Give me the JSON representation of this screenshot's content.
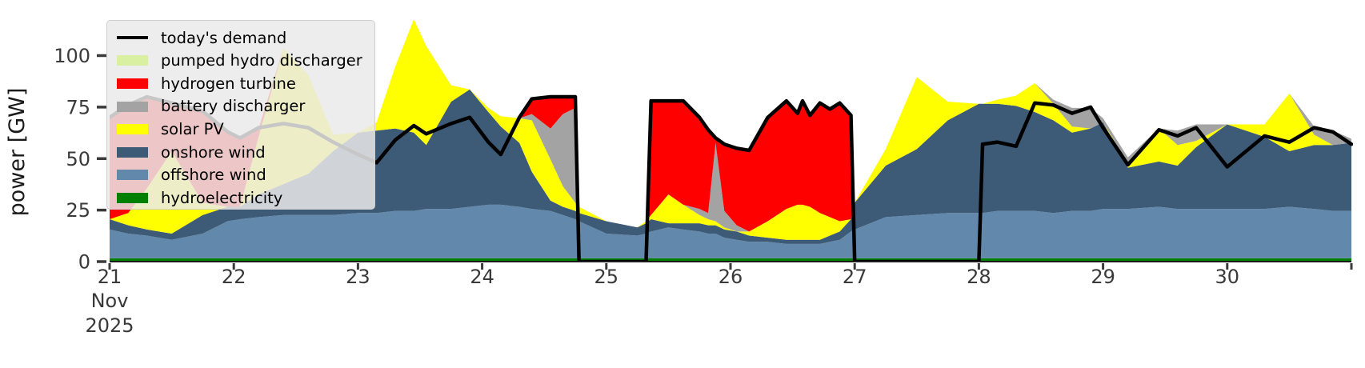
{
  "figure": {
    "ylabel": "power [GW]",
    "month_label": "Nov",
    "year_label": "2025",
    "axis_text_color": "#3a3a3a",
    "background_color": "#ffffff",
    "y_ticks": [
      0,
      25,
      50,
      75,
      100
    ],
    "x_ticks": [
      {
        "day": 21,
        "label": "21"
      },
      {
        "day": 22,
        "label": "22"
      },
      {
        "day": 23,
        "label": "23"
      },
      {
        "day": 24,
        "label": "24"
      },
      {
        "day": 25,
        "label": "25"
      },
      {
        "day": 26,
        "label": "26"
      },
      {
        "day": 27,
        "label": "27"
      },
      {
        "day": 28,
        "label": "28"
      },
      {
        "day": 29,
        "label": "29"
      },
      {
        "day": 30,
        "label": "30"
      }
    ],
    "edge_tick_day": 31
  },
  "legend": {
    "items": [
      {
        "label": "today's demand",
        "color": "#000000",
        "type": "line"
      },
      {
        "label": "pumped hydro discharger",
        "color": "#d9f0a3",
        "type": "patch"
      },
      {
        "label": "hydrogen turbine",
        "color": "#fe0000",
        "type": "patch"
      },
      {
        "label": "battery discharger",
        "color": "#a3a3a3",
        "type": "patch"
      },
      {
        "label": "solar PV",
        "color": "#ffff00",
        "type": "patch"
      },
      {
        "label": "onshore wind",
        "color": "#3d5a77",
        "type": "patch"
      },
      {
        "label": "offshore wind",
        "color": "#6288ac",
        "type": "patch"
      },
      {
        "label": "hydroelectricity",
        "color": "#008000",
        "type": "patch"
      }
    ]
  },
  "chart_data": {
    "type": "area",
    "stacked": true,
    "title": "",
    "xlabel": "",
    "ylabel": "power [GW]",
    "x_unit": "day of Nov 2025",
    "xlim": [
      21,
      31
    ],
    "ylim": [
      0,
      123
    ],
    "grid": false,
    "legend_position": "upper-left",
    "x": [
      21.0,
      21.15,
      21.3,
      21.5,
      21.75,
      21.95,
      22.05,
      22.2,
      22.4,
      22.6,
      22.8,
      23.0,
      23.15,
      23.3,
      23.45,
      23.55,
      23.75,
      23.9,
      24.05,
      24.15,
      24.3,
      24.4,
      24.55,
      24.65,
      24.75,
      24.78,
      25.0,
      25.25,
      25.32,
      25.36,
      25.5,
      25.62,
      25.75,
      25.82,
      25.88,
      25.95,
      26.05,
      26.15,
      26.3,
      26.45,
      26.54,
      26.58,
      26.64,
      26.72,
      26.8,
      26.88,
      26.97,
      27.0,
      27.25,
      27.5,
      27.75,
      28.0,
      28.03,
      28.15,
      28.3,
      28.45,
      28.6,
      28.75,
      28.9,
      29.0,
      29.2,
      29.45,
      29.6,
      29.75,
      30.0,
      30.3,
      30.5,
      30.7,
      30.85,
      31.0
    ],
    "series": [
      {
        "name": "hydroelectricity",
        "color": "#008000",
        "values": [
          1.6,
          1.6,
          1.6,
          1.6,
          1.6,
          1.6,
          1.6,
          1.6,
          1.6,
          1.6,
          1.6,
          1.6,
          1.6,
          1.6,
          1.6,
          1.6,
          1.6,
          1.6,
          1.6,
          1.6,
          1.6,
          1.6,
          1.6,
          1.6,
          1.6,
          1.6,
          1.6,
          1.6,
          1.6,
          1.6,
          1.6,
          1.6,
          1.6,
          1.6,
          1.6,
          1.6,
          1.6,
          1.6,
          1.6,
          1.6,
          1.6,
          1.6,
          1.6,
          1.6,
          1.6,
          1.6,
          1.6,
          1.6,
          1.6,
          1.6,
          1.6,
          1.6,
          1.6,
          1.6,
          1.6,
          1.6,
          1.6,
          1.6,
          1.6,
          1.6,
          1.6,
          1.6,
          1.6,
          1.6,
          1.6,
          1.6,
          1.6,
          1.6,
          1.6,
          1.6
        ]
      },
      {
        "name": "offshore wind",
        "color": "#6288ac",
        "values": [
          14,
          12,
          11,
          9,
          12,
          18,
          19,
          20,
          21,
          21,
          21,
          22,
          22,
          23,
          23,
          24,
          24,
          25,
          26,
          26,
          25,
          24,
          23,
          21,
          19,
          18,
          12,
          11,
          12,
          13,
          15,
          14,
          13,
          12,
          12,
          10,
          9,
          8,
          8,
          7,
          7,
          7,
          7,
          7,
          8,
          9,
          13,
          14,
          20,
          21,
          22,
          22,
          22,
          23,
          23,
          23,
          22,
          23,
          23,
          24,
          24,
          25,
          24,
          24,
          24,
          24,
          25,
          24,
          23,
          23
        ]
      },
      {
        "name": "onshore wind",
        "color": "#3d5a77",
        "values": [
          5,
          4,
          3,
          3,
          9,
          7,
          6,
          11,
          15,
          20,
          31,
          39,
          40,
          40,
          38,
          31,
          52,
          57,
          45,
          38,
          31,
          18,
          5,
          4,
          4,
          4,
          6,
          4,
          5,
          6,
          2,
          3,
          4,
          4,
          4,
          4,
          4,
          3,
          2,
          2,
          2,
          2,
          2,
          2,
          3,
          4,
          6,
          13,
          25,
          32,
          45,
          53,
          53,
          52,
          51,
          48,
          45,
          38,
          40,
          42,
          20,
          22,
          21,
          30,
          41,
          35,
          27,
          31,
          32,
          33
        ]
      },
      {
        "name": "solar PV",
        "color": "#ffff00",
        "values": [
          0,
          6,
          20,
          40,
          6,
          0,
          0,
          28,
          66,
          48,
          8,
          0,
          4,
          30,
          55,
          48,
          8,
          0,
          2,
          5,
          12,
          25,
          20,
          10,
          4,
          3,
          0,
          0,
          1,
          2,
          14,
          9,
          4,
          3,
          2,
          1,
          0,
          2,
          8,
          15,
          17,
          17,
          16,
          13,
          9,
          5,
          0,
          0,
          8,
          35,
          9,
          0,
          0,
          2,
          5,
          14,
          8,
          3,
          0,
          0,
          2,
          16,
          10,
          3,
          0,
          6,
          28,
          5,
          0,
          0
        ]
      },
      {
        "name": "battery discharger",
        "color": "#a3a3a3",
        "values": [
          0,
          0,
          0,
          0,
          0,
          0,
          0,
          0,
          0,
          0,
          0,
          0,
          0,
          0,
          0,
          0,
          0,
          0,
          0,
          0,
          0,
          3,
          15,
          35,
          46,
          0,
          0,
          0,
          0,
          0,
          0,
          0,
          3,
          3,
          38,
          8,
          3,
          0,
          0,
          0,
          0,
          0,
          0,
          0,
          0,
          0,
          0,
          0,
          0,
          0,
          0,
          0,
          0,
          0,
          0,
          0,
          2,
          9,
          10,
          2,
          3,
          0,
          7,
          8,
          0,
          0,
          0,
          4,
          7,
          2
        ]
      },
      {
        "name": "hydrogen turbine",
        "color": "#fe0000",
        "values": [
          49,
          52,
          44,
          24,
          44,
          36,
          33,
          4,
          0,
          0,
          0,
          0,
          0,
          0,
          0,
          0,
          0,
          0,
          0,
          0,
          0,
          7,
          15,
          8,
          5,
          0,
          0,
          0,
          0,
          55,
          45,
          50,
          44,
          40,
          2,
          32,
          37,
          39,
          50,
          52,
          44,
          50,
          44,
          53,
          52,
          57,
          50,
          0,
          0,
          0,
          0,
          0,
          0,
          0,
          0,
          0,
          0,
          0,
          0,
          0,
          0,
          0,
          0,
          0,
          0,
          0,
          0,
          0,
          0,
          0
        ]
      },
      {
        "name": "pumped hydro discharger",
        "color": "#d9f0a3",
        "values": [
          0,
          0,
          0,
          0,
          0,
          0,
          0,
          0,
          0,
          0,
          0,
          0,
          0,
          0,
          0,
          0,
          0,
          0,
          0,
          0,
          0,
          0,
          0,
          0,
          0,
          0,
          0,
          0,
          0,
          0,
          0,
          0,
          0,
          0,
          0,
          0,
          0,
          0,
          0,
          0,
          0,
          0,
          0,
          0,
          0,
          0,
          0,
          0,
          0,
          0,
          0,
          0,
          0,
          0,
          0,
          0,
          0,
          0,
          0,
          0,
          0,
          0,
          0,
          0,
          0,
          0,
          0,
          0,
          0,
          0
        ]
      }
    ],
    "demand_line": {
      "name": "today's demand",
      "color": "#000000",
      "line_width": 4.5,
      "values": [
        70,
        76,
        80,
        77,
        73,
        63,
        60,
        65,
        67,
        65,
        58,
        52,
        48,
        59,
        66,
        62,
        67,
        70,
        58,
        52,
        70,
        79,
        80,
        80,
        80,
        0,
        0,
        0,
        0,
        78,
        78,
        78,
        70,
        64,
        60,
        57,
        55,
        54,
        70,
        78,
        72,
        78,
        71,
        77,
        74,
        77,
        71,
        0,
        0,
        0,
        0,
        0,
        57,
        58,
        56,
        77,
        76,
        72,
        75,
        65,
        47,
        64,
        61,
        65,
        46,
        61,
        58,
        65,
        63,
        57
      ]
    }
  }
}
